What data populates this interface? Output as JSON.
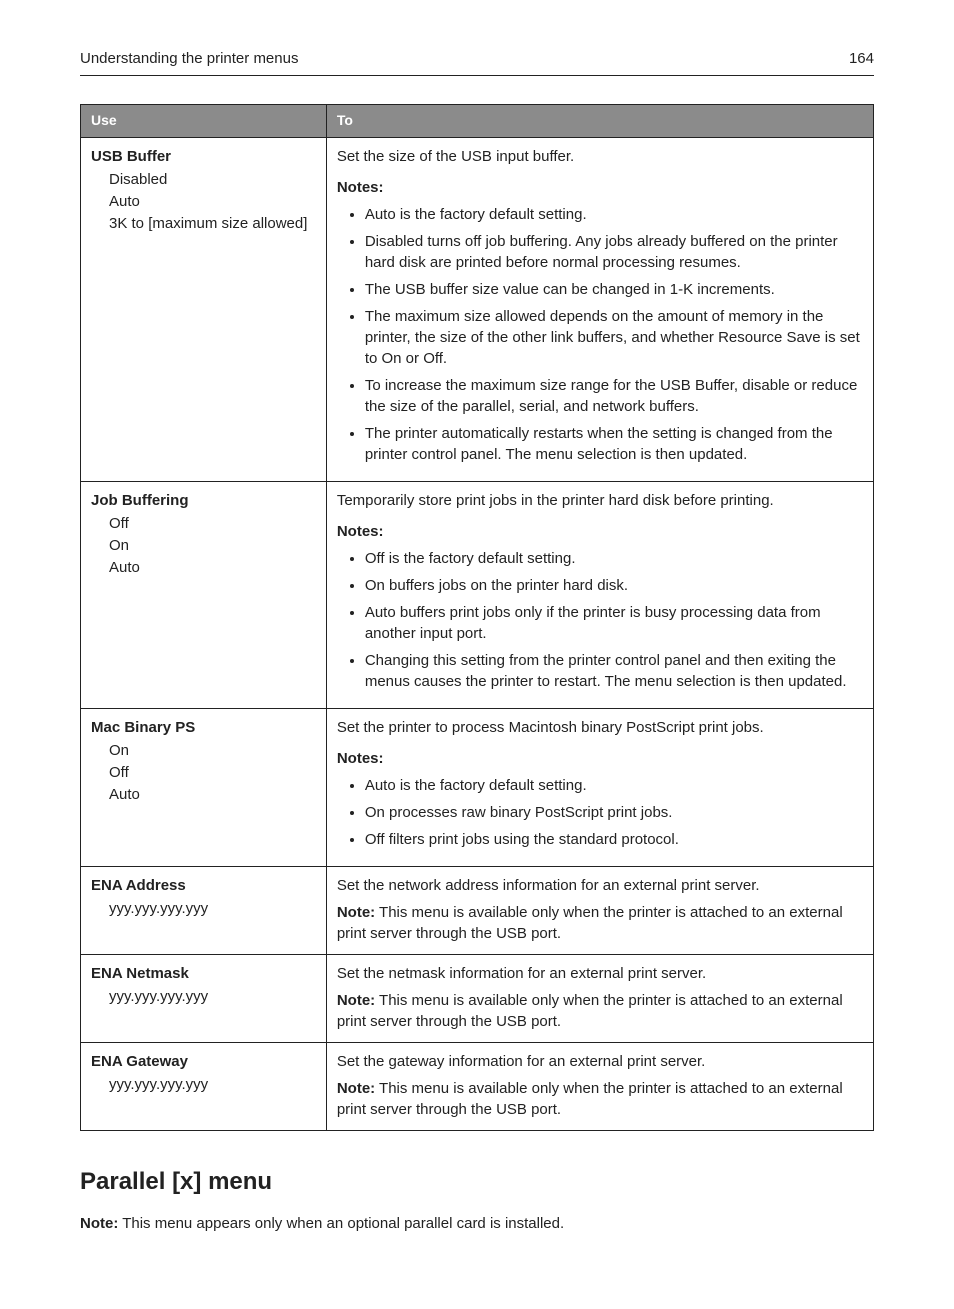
{
  "header": {
    "title": "Understanding the printer menus",
    "page_number": "164"
  },
  "table": {
    "columns": {
      "use": "Use",
      "to": "To"
    },
    "rows": [
      {
        "title": "USB Buffer",
        "options": [
          "Disabled",
          "Auto",
          "3K to [maximum size allowed]"
        ],
        "desc": "Set the size of the USB input buffer.",
        "notes_label": "Notes:",
        "notes": [
          "Auto is the factory default setting.",
          "Disabled turns off job buffering. Any jobs already buffered on the printer hard disk are printed before normal processing resumes.",
          "The USB buffer size value can be changed in 1-K increments.",
          "The maximum size allowed depends on the amount of memory in the printer, the size of the other link buffers, and whether Resource Save is set to On or Off.",
          "To increase the maximum size range for the USB Buffer, disable or reduce the size of the parallel, serial, and network buffers.",
          "The printer automatically restarts when the setting is changed from the printer control panel. The menu selection is then updated."
        ]
      },
      {
        "title": "Job Buffering",
        "options": [
          "Off",
          "On",
          "Auto"
        ],
        "desc": "Temporarily store print jobs in the printer hard disk before printing.",
        "notes_label": "Notes:",
        "notes": [
          "Off is the factory default setting.",
          "On buffers jobs on the printer hard disk.",
          "Auto buffers print jobs only if the printer is busy processing data from another input port.",
          "Changing this setting from the printer control panel and then exiting the menus causes the printer to restart. The menu selection is then updated."
        ]
      },
      {
        "title": "Mac Binary PS",
        "options": [
          "On",
          "Off",
          "Auto"
        ],
        "desc": "Set the printer to process Macintosh binary PostScript print jobs.",
        "notes_label": "Notes:",
        "notes": [
          "Auto is the factory default setting.",
          "On processes raw binary PostScript print jobs.",
          "Off filters print jobs using the standard protocol."
        ]
      },
      {
        "title": "ENA Address",
        "options": [
          "yyy.yyy.yyy.yyy"
        ],
        "desc": "Set the network address information for an external print server.",
        "note_label": "Note:",
        "note_text": " This menu is available only when the printer is attached to an external print server through the USB port."
      },
      {
        "title": "ENA Netmask",
        "options": [
          "yyy.yyy.yyy.yyy"
        ],
        "desc": "Set the netmask information for an external print server.",
        "note_label": "Note:",
        "note_text": " This menu is available only when the printer is attached to an external print server through the USB port."
      },
      {
        "title": "ENA Gateway",
        "options": [
          "yyy.yyy.yyy.yyy"
        ],
        "desc": "Set the gateway information for an external print server.",
        "note_label": "Note:",
        "note_text": " This menu is available only when the printer is attached to an external print server through the USB port."
      }
    ]
  },
  "section": {
    "heading": "Parallel [x] menu",
    "note_label": "Note:",
    "note_text": " This menu appears only when an optional parallel card is installed."
  }
}
